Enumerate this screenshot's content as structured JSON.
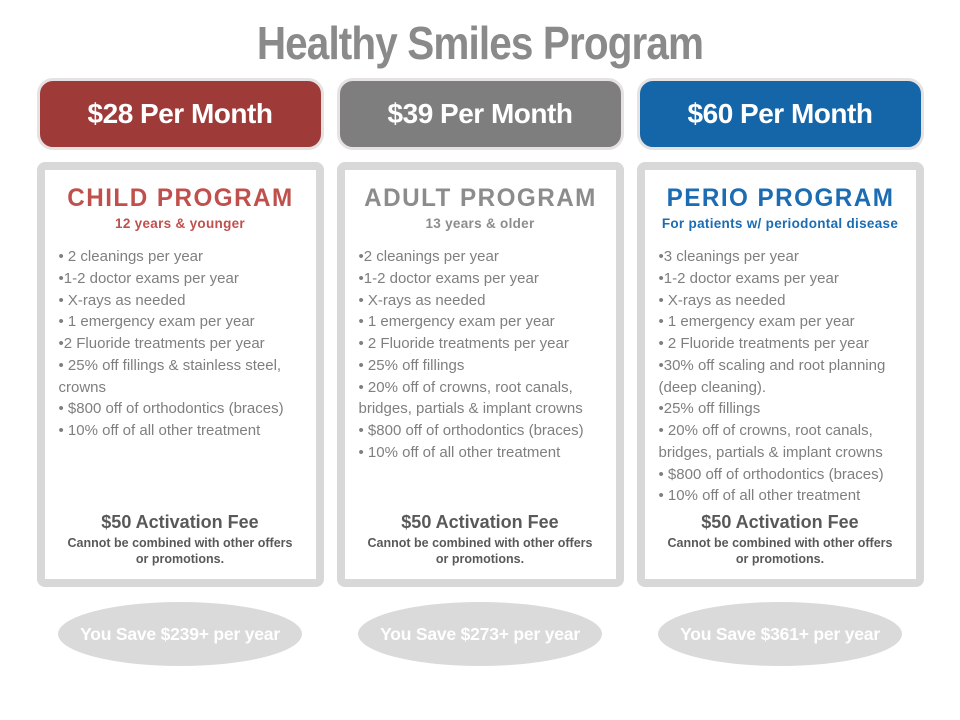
{
  "title": "Healthy Smiles Program",
  "colors": {
    "title_gray": "#8A8A8A",
    "child_accent": "#9E3B39",
    "child_heading": "#C0504D",
    "adult_accent": "#7E7E7E",
    "adult_heading": "#8C8C8C",
    "perio_accent": "#1565A9",
    "perio_heading": "#1B6CB2",
    "body_text": "#7F7F7F",
    "fee_text": "#595959",
    "panel_border": "#D8D8D8",
    "savings_ellipse": "#DADADA"
  },
  "columns": [
    {
      "price": "$28 Per Month",
      "name": "CHILD PROGRAM",
      "subtitle": "12 years & younger",
      "items": [
        "• 2 cleanings per year",
        "•1-2 doctor exams per year",
        "• X-rays as needed",
        "• 1 emergency exam per year",
        "•2 Fluoride treatments per year",
        "• 25% off fillings & stainless steel,\ncrowns",
        "• $800 off of orthodontics (braces)",
        "• 10% off of all other treatment"
      ],
      "activation_fee": "$50 Activation Fee",
      "fee_note": "Cannot be combined with other offers\nor promotions.",
      "savings": "You Save $239+ per year"
    },
    {
      "price": "$39 Per Month",
      "name": "ADULT PROGRAM",
      "subtitle": "13 years & older",
      "items": [
        "•2 cleanings per year",
        "•1-2 doctor exams per year",
        "• X-rays as needed",
        "• 1 emergency exam per year",
        "• 2 Fluoride treatments per year",
        "• 25% off fillings",
        "• 20% off of crowns, root canals,\nbridges, partials & implant crowns",
        "• $800 off of orthodontics (braces)",
        "• 10% off of all other treatment"
      ],
      "activation_fee": "$50 Activation Fee",
      "fee_note": "Cannot be combined with other offers\nor promotions.",
      "savings": "You Save $273+ per year"
    },
    {
      "price": "$60 Per Month",
      "name": "PERIO PROGRAM",
      "subtitle": "For patients w/ periodontal disease",
      "items": [
        "•3 cleanings per year",
        "•1-2 doctor exams per year",
        "• X-rays as needed",
        "• 1 emergency exam per year",
        "• 2 Fluoride treatments per year",
        "•30% off scaling and root planning\n(deep cleaning).",
        "•25% off fillings",
        "• 20% off of crowns, root canals,\nbridges, partials & implant crowns",
        "• $800 off of orthodontics (braces)",
        "• 10% off of all other treatment"
      ],
      "activation_fee": "$50 Activation Fee",
      "fee_note": "Cannot be combined with other offers\nor promotions.",
      "savings": "You Save $361+ per year"
    }
  ]
}
